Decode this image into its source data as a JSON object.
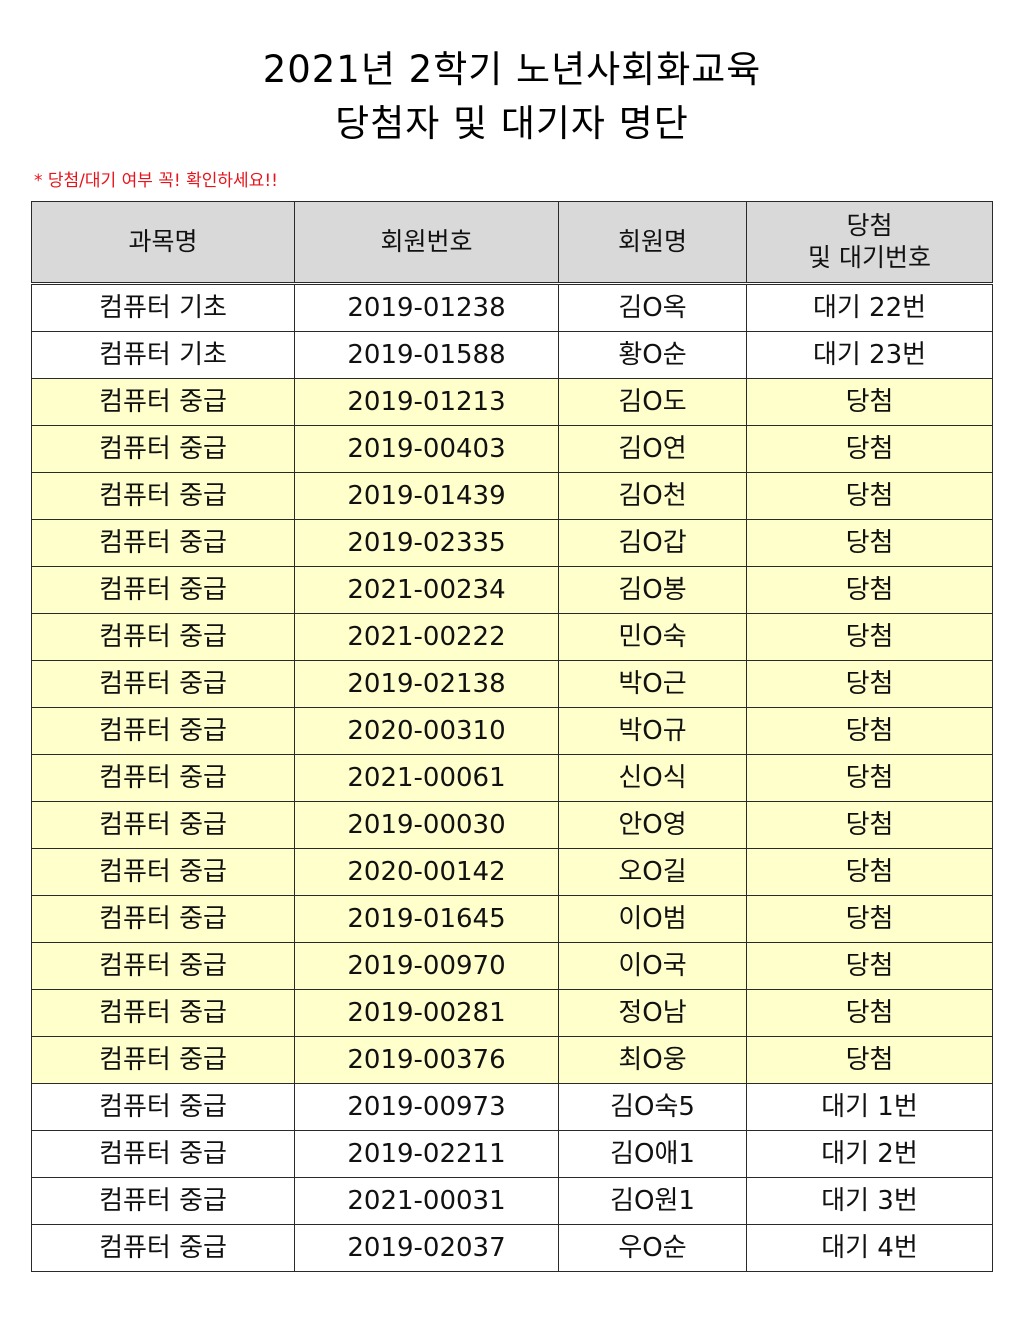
{
  "document": {
    "title_line1": "2021년 2학기 노년사회화교육",
    "title_line2": "당첨자 및 대기자 명단",
    "notice": "* 당첨/대기 여부 꼭! 확인하세요!!",
    "colors": {
      "header_bg": "#d9d9d9",
      "selected_row_bg": "#ffffcc",
      "notice_text": "#e8141b"
    }
  },
  "table": {
    "headers": {
      "course": "과목명",
      "member_no": "회원번호",
      "member_name": "회원명",
      "result_line1": "당첨",
      "result_line2": "및 대기번호"
    },
    "rows": [
      {
        "course": "컴퓨터 기초",
        "member_no": "2019-01238",
        "member_name": "김O옥",
        "result": "대기 22번"
      },
      {
        "course": "컴퓨터 기초",
        "member_no": "2019-01588",
        "member_name": "황O순",
        "result": "대기 23번"
      },
      {
        "course": "컴퓨터 중급",
        "member_no": "2019-01213",
        "member_name": "김O도",
        "result": "당첨"
      },
      {
        "course": "컴퓨터 중급",
        "member_no": "2019-00403",
        "member_name": "김O연",
        "result": "당첨"
      },
      {
        "course": "컴퓨터 중급",
        "member_no": "2019-01439",
        "member_name": "김O천",
        "result": "당첨"
      },
      {
        "course": "컴퓨터 중급",
        "member_no": "2019-02335",
        "member_name": "김O갑",
        "result": "당첨"
      },
      {
        "course": "컴퓨터 중급",
        "member_no": "2021-00234",
        "member_name": "김O봉",
        "result": "당첨"
      },
      {
        "course": "컴퓨터 중급",
        "member_no": "2021-00222",
        "member_name": "민O숙",
        "result": "당첨"
      },
      {
        "course": "컴퓨터 중급",
        "member_no": "2019-02138",
        "member_name": "박O근",
        "result": "당첨"
      },
      {
        "course": "컴퓨터 중급",
        "member_no": "2020-00310",
        "member_name": "박O규",
        "result": "당첨"
      },
      {
        "course": "컴퓨터 중급",
        "member_no": "2021-00061",
        "member_name": "신O식",
        "result": "당첨"
      },
      {
        "course": "컴퓨터 중급",
        "member_no": "2019-00030",
        "member_name": "안O영",
        "result": "당첨"
      },
      {
        "course": "컴퓨터 중급",
        "member_no": "2020-00142",
        "member_name": "오O길",
        "result": "당첨"
      },
      {
        "course": "컴퓨터 중급",
        "member_no": "2019-01645",
        "member_name": "이O범",
        "result": "당첨"
      },
      {
        "course": "컴퓨터 중급",
        "member_no": "2019-00970",
        "member_name": "이O국",
        "result": "당첨"
      },
      {
        "course": "컴퓨터 중급",
        "member_no": "2019-00281",
        "member_name": "정O남",
        "result": "당첨"
      },
      {
        "course": "컴퓨터 중급",
        "member_no": "2019-00376",
        "member_name": "최O웅",
        "result": "당첨"
      },
      {
        "course": "컴퓨터 중급",
        "member_no": "2019-00973",
        "member_name": "김O숙5",
        "result": "대기 1번"
      },
      {
        "course": "컴퓨터 중급",
        "member_no": "2019-02211",
        "member_name": "김O애1",
        "result": "대기 2번"
      },
      {
        "course": "컴퓨터 중급",
        "member_no": "2021-00031",
        "member_name": "김O원1",
        "result": "대기 3번"
      },
      {
        "course": "컴퓨터 중급",
        "member_no": "2019-02037",
        "member_name": "우O순",
        "result": "대기 4번"
      }
    ]
  }
}
